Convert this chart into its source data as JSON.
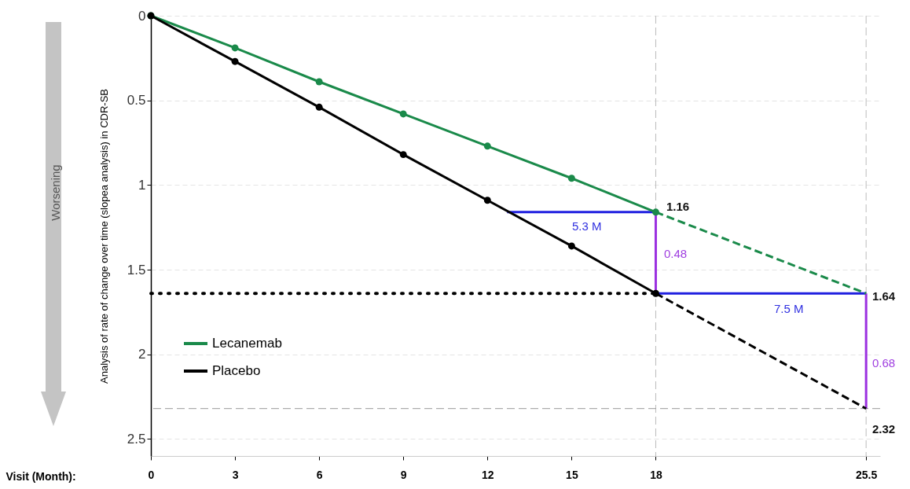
{
  "chart_data": {
    "type": "line",
    "ylabel": "Analysis of rate of  change over time (slopea analysis) in CDR-SB",
    "xlabel": "Visit (Month):",
    "xlim": [
      0,
      26
    ],
    "xticks": [
      0,
      3,
      6,
      9,
      12,
      15,
      18,
      25.5
    ],
    "ylim": [
      2.6,
      0
    ],
    "yticks": [
      0,
      0.5,
      1,
      1.5,
      2,
      2.5
    ],
    "grid": "y",
    "legend": "bottom left",
    "series": [
      {
        "name": "Lecanemab",
        "color": "#1a8a4a",
        "x": [
          0,
          3,
          6,
          9,
          12,
          15,
          18
        ],
        "values": [
          0,
          0.19,
          0.39,
          0.58,
          0.77,
          0.96,
          1.16
        ],
        "marker": "circle",
        "line_style": "solid"
      },
      {
        "name": "Placebo",
        "color": "#000000",
        "x": [
          0,
          3,
          6,
          9,
          12,
          15,
          18
        ],
        "values": [
          0,
          0.27,
          0.54,
          0.82,
          1.09,
          1.36,
          1.64
        ],
        "marker": "circle",
        "line_style": "solid"
      },
      {
        "color": "#1a8a4a",
        "x": [
          18,
          25.5
        ],
        "values": [
          1.16,
          1.64
        ],
        "line_style": "dashed"
      },
      {
        "color": "#000000",
        "x": [
          18,
          25.5
        ],
        "values": [
          1.64,
          2.32
        ],
        "line_style": "dashed"
      },
      {
        "color": "#000000",
        "x": [
          0,
          18
        ],
        "values": [
          1.64,
          1.64
        ],
        "line_style": "dotted"
      },
      {
        "color": "#1f1fe0",
        "x": [
          12.7,
          18
        ],
        "values": [
          1.16,
          1.16
        ],
        "line_style": "solid"
      },
      {
        "color": "#1f1fe0",
        "x": [
          18,
          25.5
        ],
        "values": [
          1.64,
          1.64
        ],
        "line_style": "solid"
      },
      {
        "color": "#9b30e0",
        "x": [
          18,
          18
        ],
        "values": [
          1.16,
          1.64
        ],
        "line_style": "solid"
      },
      {
        "color": "#9b30e0",
        "x": [
          25.5,
          25.5
        ],
        "values": [
          1.64,
          2.32
        ],
        "line_style": "solid"
      }
    ],
    "ref_lines": [
      {
        "axis": "y",
        "value": 2.32,
        "color": "#999999",
        "line_style": "dashed"
      },
      {
        "axis": "x",
        "value": 18,
        "color": "#bbbbbb",
        "line_style": "dashed"
      },
      {
        "axis": "x",
        "value": 25.5,
        "color": "#bbbbbb",
        "line_style": "dashed"
      }
    ],
    "annotations": [
      "Worsening",
      "1.16",
      "1.64",
      "2.32",
      "5.3 M",
      "7.5 M",
      "0.48",
      "0.68"
    ]
  }
}
